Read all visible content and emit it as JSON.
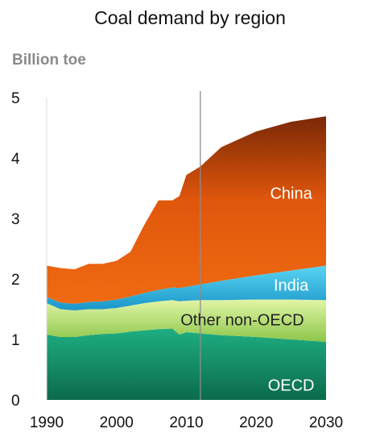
{
  "chart_data": {
    "type": "area",
    "stacked": true,
    "title": "Coal demand by region",
    "ylabel": "Billion toe",
    "xlabel": "",
    "xlim": [
      1990,
      2030
    ],
    "ylim": [
      0,
      5
    ],
    "xticks": [
      1990,
      2000,
      2010,
      2020,
      2030
    ],
    "yticks": [
      0,
      1,
      2,
      3,
      4,
      5
    ],
    "grid": false,
    "divider_x": 2012,
    "x": [
      1990,
      1992,
      1994,
      1996,
      1998,
      2000,
      2002,
      2004,
      2006,
      2008,
      2009,
      2010,
      2012,
      2015,
      2020,
      2025,
      2030
    ],
    "series": [
      {
        "name": "OECD",
        "color": "#1a9a72",
        "values": [
          1.08,
          1.04,
          1.04,
          1.07,
          1.09,
          1.1,
          1.13,
          1.15,
          1.17,
          1.18,
          1.08,
          1.12,
          1.1,
          1.07,
          1.04,
          1.0,
          0.96
        ]
      },
      {
        "name": "Other non-OECD",
        "color": "#c9ea8a",
        "values": [
          0.52,
          0.46,
          0.44,
          0.43,
          0.41,
          0.42,
          0.43,
          0.45,
          0.46,
          0.47,
          0.55,
          0.52,
          0.55,
          0.58,
          0.62,
          0.66,
          0.69
        ]
      },
      {
        "name": "India",
        "color": "#3cc6ec",
        "values": [
          0.1,
          0.11,
          0.11,
          0.12,
          0.13,
          0.14,
          0.15,
          0.17,
          0.19,
          0.21,
          0.22,
          0.23,
          0.26,
          0.32,
          0.4,
          0.48,
          0.57
        ]
      },
      {
        "name": "China",
        "color": "#e8590c",
        "values": [
          0.52,
          0.57,
          0.57,
          0.63,
          0.62,
          0.64,
          0.74,
          1.13,
          1.48,
          1.44,
          1.52,
          1.85,
          1.95,
          2.21,
          2.38,
          2.46,
          2.47
        ]
      }
    ]
  }
}
